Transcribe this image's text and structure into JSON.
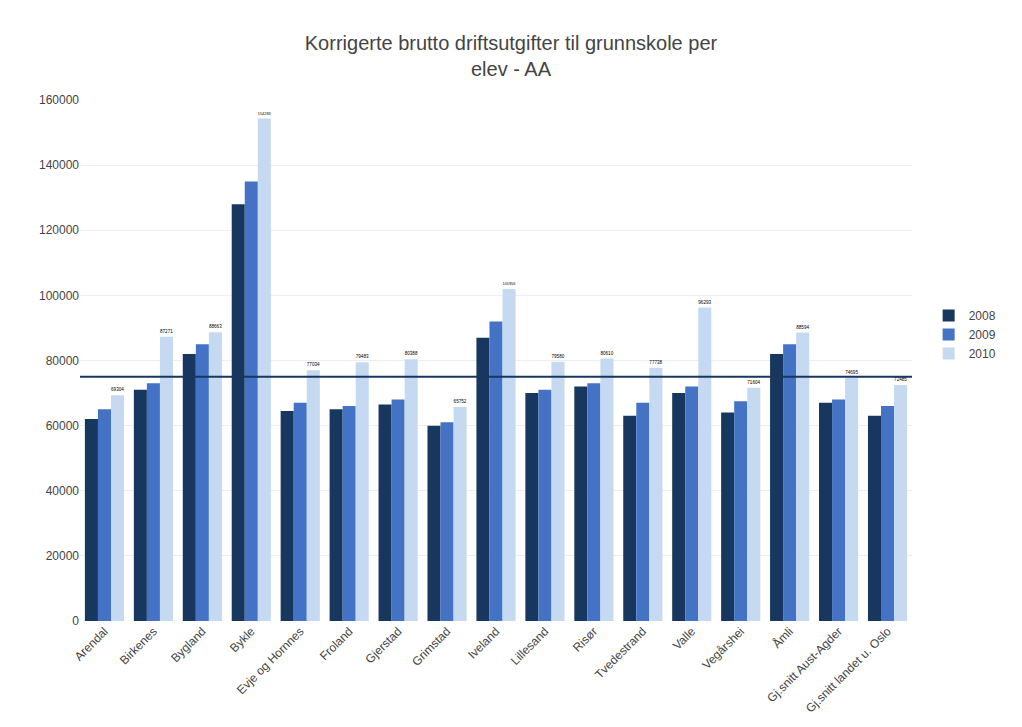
{
  "chart_data": {
    "type": "bar",
    "title": "Korrigerte brutto driftsutgifter til grunnskole per\nelev - AA",
    "categories": [
      "Arendal",
      "Birkenes",
      "Bygland",
      "Bykle",
      "Evje og Hornnes",
      "Froland",
      "Gjerstad",
      "Grimstad",
      "Iveland",
      "Lillesand",
      "Risør",
      "Tvedestrand",
      "Valle",
      "Vegårshei",
      "Åmli",
      "Gj.snitt Aust-Agder",
      "Gj.snitt landet u. Oslo"
    ],
    "series": [
      {
        "name": "2008",
        "color": "#17375E",
        "values": [
          62000,
          71000,
          82000,
          128000,
          64500,
          65000,
          66500,
          60000,
          87000,
          70000,
          72000,
          63000,
          70000,
          64000,
          82000,
          67000,
          63000
        ]
      },
      {
        "name": "2009",
        "color": "#4472C4",
        "values": [
          65000,
          73000,
          85000,
          135000,
          67000,
          66000,
          68000,
          61000,
          92000,
          71000,
          73000,
          67000,
          72000,
          67500,
          85000,
          68000,
          66000
        ]
      },
      {
        "name": "2010",
        "color": "#C5D9F1",
        "data_labels": true,
        "values": [
          69304,
          87271,
          88663,
          154283,
          77034,
          79483,
          80388,
          65752,
          101956,
          79580,
          80610,
          77738,
          96293,
          71604,
          88594,
          74695,
          72485
        ]
      }
    ],
    "hline": {
      "y": 75000,
      "color": "#17375E"
    },
    "ylim": [
      0,
      160000
    ],
    "yticks": [
      0,
      20000,
      40000,
      60000,
      80000,
      100000,
      120000,
      140000,
      160000
    ],
    "grid": true,
    "legend": "right"
  }
}
